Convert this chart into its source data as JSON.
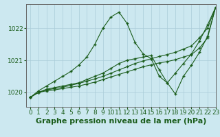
{
  "title": "Graphe pression niveau de la mer (hPa)",
  "background_color": "#cce8f0",
  "line_color": "#1a5c1a",
  "xlim": [
    -0.5,
    23
  ],
  "ylim": [
    1019.55,
    1022.75
  ],
  "yticks": [
    1020,
    1021,
    1022
  ],
  "xticks": [
    0,
    1,
    2,
    3,
    4,
    5,
    6,
    7,
    8,
    9,
    10,
    11,
    12,
    13,
    14,
    15,
    16,
    17,
    18,
    19,
    20,
    21,
    22,
    23
  ],
  "series": [
    {
      "x": [
        0,
        1,
        2,
        3,
        4,
        5,
        6,
        7,
        8,
        9,
        10,
        11,
        12,
        13,
        14,
        15,
        16,
        17,
        18,
        19,
        20,
        21,
        22,
        23
      ],
      "y": [
        1019.85,
        1020.05,
        1020.2,
        1020.35,
        1020.5,
        1020.65,
        1020.85,
        1021.1,
        1021.5,
        1022.0,
        1022.35,
        1022.5,
        1022.15,
        1021.55,
        1021.2,
        1021.05,
        1020.5,
        1020.3,
        1020.6,
        1020.9,
        1021.2,
        1021.6,
        1022.1,
        1022.65
      ]
    },
    {
      "x": [
        0,
        1,
        2,
        3,
        4,
        5,
        6,
        7,
        8,
        9,
        10,
        11,
        12,
        13,
        14,
        15,
        16,
        17,
        18,
        19,
        20,
        21,
        22,
        23
      ],
      "y": [
        1019.85,
        1020.0,
        1020.1,
        1020.15,
        1020.2,
        1020.25,
        1020.3,
        1020.4,
        1020.5,
        1020.6,
        1020.75,
        1020.9,
        1021.0,
        1021.05,
        1021.1,
        1021.15,
        1020.7,
        1020.3,
        1019.95,
        1020.5,
        1020.85,
        1021.25,
        1021.75,
        1022.65
      ]
    },
    {
      "x": [
        0,
        1,
        2,
        3,
        4,
        5,
        6,
        7,
        8,
        9,
        10,
        11,
        12,
        13,
        14,
        15,
        16,
        17,
        18,
        19,
        20,
        21,
        22,
        23
      ],
      "y": [
        1019.85,
        1020.0,
        1020.08,
        1020.12,
        1020.16,
        1020.22,
        1020.28,
        1020.35,
        1020.42,
        1020.5,
        1020.6,
        1020.7,
        1020.8,
        1020.9,
        1020.98,
        1021.05,
        1021.12,
        1021.18,
        1021.25,
        1021.35,
        1021.45,
        1021.7,
        1022.0,
        1022.65
      ]
    },
    {
      "x": [
        0,
        1,
        2,
        3,
        4,
        5,
        6,
        7,
        8,
        9,
        10,
        11,
        12,
        13,
        14,
        15,
        16,
        17,
        18,
        19,
        20,
        21,
        22,
        23
      ],
      "y": [
        1019.85,
        1020.0,
        1020.05,
        1020.08,
        1020.12,
        1020.16,
        1020.2,
        1020.26,
        1020.32,
        1020.4,
        1020.48,
        1020.56,
        1020.64,
        1020.72,
        1020.8,
        1020.86,
        1020.92,
        1020.96,
        1021.02,
        1021.1,
        1021.18,
        1021.38,
        1021.7,
        1022.65
      ]
    }
  ],
  "grid_color": "#aaccd8",
  "tick_label_fontsize": 6.5,
  "title_fontsize": 8
}
